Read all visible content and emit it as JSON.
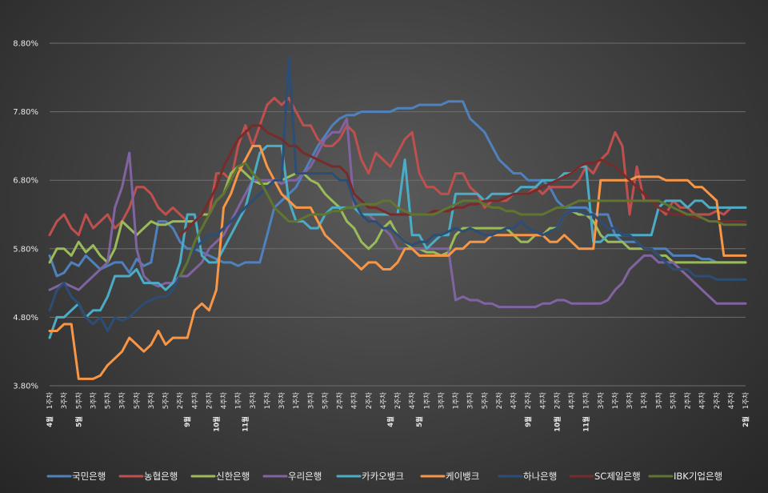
{
  "chart_data": {
    "type": "line",
    "ylim": [
      3.8,
      8.8
    ],
    "y_ticks": [
      "3.80%",
      "4.80%",
      "5.80%",
      "6.80%",
      "7.80%",
      "8.80%"
    ],
    "y_tick_values": [
      3.8,
      4.8,
      5.8,
      6.8,
      7.8,
      8.8
    ],
    "grid": true,
    "legend_position": "bottom",
    "x_week_labels": [
      "1주차",
      "3주차",
      "5주차",
      "3주차",
      "5주차",
      "3주차",
      "5주차",
      "3주차",
      "5주차",
      "2주차",
      "4주차",
      "2주차",
      "4주차",
      "1주차",
      "3주차",
      "1주차",
      "3주차",
      "1주차",
      "3주차",
      "5주차",
      "2주차",
      "4주차",
      "2주차",
      "4주차",
      "2주차",
      "4주차",
      "1주차",
      "3주차",
      "1주차",
      "3주차",
      "5주차",
      "2주차",
      "4주차",
      "2주차",
      "4주차",
      "2주차",
      "4주차",
      "1주차",
      "3주차",
      "1주차",
      "3주차",
      "1주차",
      "3주차",
      "5주차",
      "2주차",
      "4주차",
      "2주차",
      "4주차",
      "1주차"
    ],
    "x_month_labels": [
      {
        "at": 0,
        "text": "4월"
      },
      {
        "at": 4,
        "text": "5월"
      },
      {
        "at": 19,
        "text": "9월"
      },
      {
        "at": 23,
        "text": "10월"
      },
      {
        "at": 27,
        "text": "11월"
      },
      {
        "at": 47,
        "text": "4월"
      },
      {
        "at": 51,
        "text": "5월"
      },
      {
        "at": 66,
        "text": "9월"
      },
      {
        "at": 70,
        "text": "10월"
      },
      {
        "at": 74,
        "text": "11월"
      },
      {
        "at": 96,
        "text": "2월"
      }
    ],
    "series": [
      {
        "name": "국민은행",
        "color": "#4f81bd",
        "values": [
          5.7,
          5.4,
          5.45,
          5.6,
          5.55,
          5.7,
          5.6,
          5.5,
          5.55,
          5.6,
          5.6,
          5.45,
          5.65,
          5.55,
          5.6,
          6.2,
          6.2,
          6.1,
          5.9,
          5.8,
          5.8,
          5.75,
          5.7,
          5.65,
          5.6,
          5.6,
          5.55,
          5.6,
          5.6,
          5.6,
          6.0,
          6.4,
          6.5,
          6.6,
          6.7,
          6.9,
          7.1,
          7.3,
          7.45,
          7.6,
          7.7,
          7.75,
          7.75,
          7.8,
          7.8,
          7.8,
          7.8,
          7.8,
          7.85,
          7.85,
          7.85,
          7.9,
          7.9,
          7.9,
          7.9,
          7.95,
          7.95,
          7.95,
          7.7,
          7.6,
          7.5,
          7.3,
          7.1,
          7.0,
          6.9,
          6.9,
          6.8,
          6.8,
          6.8,
          6.7,
          6.5,
          6.4,
          6.4,
          6.4,
          6.4,
          6.3,
          6.3,
          6.3,
          6.0,
          5.9,
          5.9,
          5.9,
          5.8,
          5.8,
          5.8,
          5.8,
          5.7,
          5.7,
          5.7,
          5.7,
          5.65,
          5.65,
          5.6,
          5.6,
          5.6,
          5.6,
          5.6
        ]
      },
      {
        "name": "농협은행",
        "color": "#c0504d",
        "values": [
          6.0,
          6.2,
          6.3,
          6.1,
          6.0,
          6.3,
          6.1,
          6.2,
          6.3,
          6.1,
          6.2,
          6.4,
          6.7,
          6.7,
          6.6,
          6.4,
          6.3,
          6.4,
          6.3,
          6.2,
          6.2,
          6.3,
          6.3,
          6.9,
          6.9,
          6.8,
          7.3,
          7.6,
          7.3,
          7.6,
          7.9,
          8.0,
          7.9,
          8.0,
          7.8,
          7.6,
          7.6,
          7.4,
          7.3,
          7.3,
          7.4,
          7.6,
          7.5,
          7.1,
          6.9,
          7.2,
          7.1,
          7.0,
          7.2,
          7.4,
          7.5,
          6.9,
          6.7,
          6.7,
          6.6,
          6.6,
          6.9,
          6.9,
          6.7,
          6.6,
          6.4,
          6.5,
          6.5,
          6.5,
          6.6,
          6.6,
          6.6,
          6.7,
          6.6,
          6.7,
          6.7,
          6.7,
          6.7,
          6.8,
          7.0,
          6.9,
          7.1,
          7.2,
          7.5,
          7.3,
          6.3,
          7.0,
          6.5,
          6.5,
          6.4,
          6.3,
          6.5,
          6.4,
          6.4,
          6.3,
          6.3,
          6.3,
          6.35,
          6.3,
          6.4,
          6.4,
          6.4
        ]
      },
      {
        "name": "신한은행",
        "color": "#9bbb59",
        "values": [
          5.6,
          5.8,
          5.8,
          5.7,
          5.9,
          5.75,
          5.85,
          5.7,
          5.6,
          5.8,
          6.2,
          6.1,
          6.0,
          6.1,
          6.2,
          6.15,
          6.15,
          6.2,
          6.2,
          6.2,
          6.2,
          6.3,
          6.3,
          6.5,
          6.6,
          6.9,
          7.0,
          6.9,
          6.8,
          6.75,
          6.75,
          6.8,
          6.8,
          6.85,
          6.9,
          6.9,
          6.8,
          6.75,
          6.6,
          6.5,
          6.4,
          6.2,
          6.1,
          5.9,
          5.8,
          5.9,
          6.1,
          6.2,
          6.0,
          5.9,
          5.8,
          5.8,
          5.75,
          5.75,
          5.7,
          5.75,
          6.0,
          6.1,
          6.1,
          6.1,
          6.1,
          6.1,
          6.1,
          6.1,
          6.0,
          5.9,
          5.9,
          6.0,
          6.0,
          6.1,
          6.1,
          6.3,
          6.35,
          6.3,
          6.3,
          6.2,
          6.0,
          5.9,
          5.9,
          5.9,
          5.8,
          5.8,
          5.8,
          5.8,
          5.7,
          5.7,
          5.6,
          5.6,
          5.6,
          5.6,
          5.6,
          5.6,
          5.6,
          5.6,
          5.6,
          5.6,
          5.6
        ]
      },
      {
        "name": "우리은행",
        "color": "#8064a2",
        "values": [
          5.2,
          5.25,
          5.3,
          5.25,
          5.2,
          5.3,
          5.4,
          5.5,
          5.6,
          6.4,
          6.7,
          7.2,
          5.8,
          5.4,
          5.3,
          5.25,
          5.3,
          5.3,
          5.4,
          5.4,
          5.5,
          5.6,
          5.8,
          5.9,
          6.0,
          6.2,
          6.4,
          6.6,
          6.8,
          6.8,
          6.8,
          6.8,
          6.75,
          6.8,
          6.8,
          6.9,
          7.0,
          7.2,
          7.4,
          7.5,
          7.5,
          7.7,
          6.4,
          6.3,
          6.3,
          6.2,
          6.1,
          6.0,
          5.8,
          5.8,
          5.8,
          5.8,
          5.8,
          5.8,
          5.8,
          5.8,
          5.05,
          5.1,
          5.05,
          5.05,
          5.0,
          5.0,
          4.95,
          4.95,
          4.95,
          4.95,
          4.95,
          4.95,
          5.0,
          5.0,
          5.05,
          5.05,
          5.0,
          5.0,
          5.0,
          5.0,
          5.0,
          5.05,
          5.2,
          5.3,
          5.5,
          5.6,
          5.7,
          5.7,
          5.6,
          5.6,
          5.6,
          5.5,
          5.4,
          5.3,
          5.2,
          5.1,
          5.0,
          5.0,
          5.0,
          5.0,
          5.0
        ]
      },
      {
        "name": "카카오뱅크",
        "color": "#4bacc6",
        "values": [
          4.5,
          4.8,
          4.8,
          4.9,
          5.0,
          4.8,
          4.9,
          4.9,
          5.1,
          5.4,
          5.4,
          5.4,
          5.5,
          5.3,
          5.3,
          5.3,
          5.2,
          5.3,
          5.6,
          6.3,
          6.3,
          5.7,
          5.6,
          5.6,
          5.8,
          6.0,
          6.2,
          6.4,
          6.8,
          7.2,
          7.3,
          7.3,
          7.3,
          6.5,
          6.2,
          6.2,
          6.1,
          6.1,
          6.3,
          6.4,
          6.4,
          6.4,
          6.4,
          6.3,
          6.3,
          6.3,
          6.3,
          6.3,
          6.3,
          7.1,
          6.0,
          6.0,
          5.8,
          5.9,
          6.0,
          6.0,
          6.6,
          6.6,
          6.6,
          6.6,
          6.5,
          6.6,
          6.6,
          6.6,
          6.6,
          6.7,
          6.7,
          6.7,
          6.8,
          6.8,
          6.8,
          6.9,
          6.9,
          7.0,
          7.0,
          5.9,
          5.9,
          6.0,
          6.0,
          6.0,
          6.0,
          6.0,
          6.0,
          6.0,
          6.4,
          6.5,
          6.5,
          6.5,
          6.4,
          6.5,
          6.5,
          6.4,
          6.4,
          6.4,
          6.4,
          6.4,
          6.4
        ]
      },
      {
        "name": "케이뱅크",
        "color": "#f79646",
        "values": [
          4.6,
          4.6,
          4.7,
          4.7,
          3.9,
          3.9,
          3.9,
          3.95,
          4.1,
          4.2,
          4.3,
          4.5,
          4.4,
          4.3,
          4.4,
          4.6,
          4.4,
          4.5,
          4.5,
          4.5,
          4.9,
          5.0,
          4.9,
          5.2,
          6.4,
          6.6,
          6.9,
          7.1,
          7.3,
          7.3,
          7.0,
          6.8,
          6.6,
          6.5,
          6.4,
          6.4,
          6.4,
          6.2,
          6.0,
          5.9,
          5.8,
          5.7,
          5.6,
          5.5,
          5.6,
          5.6,
          5.5,
          5.5,
          5.6,
          5.8,
          5.8,
          5.7,
          5.7,
          5.7,
          5.7,
          5.7,
          5.8,
          5.8,
          5.9,
          5.9,
          5.9,
          6.0,
          6.0,
          6.0,
          6.0,
          6.0,
          6.0,
          6.0,
          6.0,
          5.9,
          5.9,
          6.0,
          5.9,
          5.8,
          5.8,
          5.8,
          6.8,
          6.8,
          6.8,
          6.8,
          6.8,
          6.85,
          6.85,
          6.85,
          6.85,
          6.8,
          6.8,
          6.8,
          6.8,
          6.7,
          6.7,
          6.6,
          6.5,
          5.7,
          5.7,
          5.7,
          5.7
        ]
      },
      {
        "name": "하나은행",
        "color": "#2c4d75",
        "values": [
          4.9,
          5.2,
          5.3,
          5.1,
          5.0,
          4.8,
          4.7,
          4.8,
          4.6,
          4.8,
          4.75,
          4.8,
          4.9,
          5.0,
          5.05,
          5.1,
          5.1,
          5.2,
          5.4,
          5.6,
          5.8,
          5.9,
          6.0,
          6.0,
          6.1,
          6.2,
          6.3,
          6.4,
          6.5,
          6.6,
          6.7,
          6.8,
          6.8,
          8.6,
          6.9,
          6.9,
          6.9,
          6.9,
          6.9,
          6.9,
          6.8,
          6.8,
          6.5,
          6.3,
          6.2,
          6.2,
          6.1,
          6.1,
          6.0,
          5.9,
          5.85,
          5.9,
          5.9,
          6.0,
          6.0,
          6.05,
          6.1,
          6.05,
          6.1,
          6.05,
          6.0,
          6.0,
          6.05,
          6.1,
          6.1,
          6.2,
          6.1,
          6.05,
          6.0,
          6.05,
          6.1,
          6.3,
          6.35,
          6.35,
          6.3,
          6.3,
          6.2,
          6.1,
          6.1,
          6.0,
          6.0,
          5.9,
          5.8,
          5.8,
          5.7,
          5.6,
          5.5,
          5.5,
          5.5,
          5.4,
          5.4,
          5.4,
          5.35,
          5.35,
          5.35,
          5.35,
          5.35
        ]
      },
      {
        "name": "SC제일은행",
        "color": "#772c2a",
        "values": [
          null,
          null,
          null,
          null,
          null,
          null,
          null,
          null,
          null,
          null,
          null,
          null,
          null,
          null,
          null,
          null,
          null,
          null,
          6.0,
          6.1,
          6.2,
          6.3,
          6.5,
          6.7,
          7.0,
          7.2,
          7.4,
          7.5,
          7.6,
          7.6,
          7.5,
          7.45,
          7.4,
          7.3,
          7.3,
          7.2,
          7.15,
          7.1,
          7.05,
          7.0,
          7.0,
          6.9,
          6.6,
          6.5,
          6.4,
          6.4,
          6.35,
          6.3,
          6.3,
          6.3,
          6.3,
          6.3,
          6.3,
          6.35,
          6.35,
          6.35,
          6.4,
          6.4,
          6.45,
          6.45,
          6.5,
          6.5,
          6.5,
          6.55,
          6.6,
          6.6,
          6.6,
          6.65,
          6.7,
          6.75,
          6.8,
          6.85,
          6.9,
          7.0,
          7.05,
          7.05,
          7.1,
          7.05,
          7.0,
          6.9,
          6.8,
          6.7,
          6.6,
          6.5,
          6.4,
          6.35,
          6.3,
          6.3,
          6.3,
          6.25,
          6.25,
          6.2,
          6.2,
          6.2,
          6.2,
          6.2,
          6.2
        ]
      },
      {
        "name": "IBK기업은행",
        "color": "#5f7530",
        "values": [
          null,
          null,
          null,
          null,
          null,
          null,
          null,
          null,
          null,
          null,
          null,
          null,
          null,
          null,
          null,
          null,
          null,
          null,
          5.4,
          5.6,
          5.9,
          6.1,
          6.3,
          6.5,
          6.6,
          6.8,
          7.0,
          7.05,
          6.9,
          6.8,
          6.6,
          6.4,
          6.3,
          6.2,
          6.2,
          6.25,
          6.3,
          6.3,
          6.3,
          6.35,
          6.35,
          6.4,
          6.4,
          6.45,
          6.45,
          6.45,
          6.5,
          6.5,
          6.4,
          6.35,
          6.3,
          6.3,
          6.3,
          6.3,
          6.35,
          6.4,
          6.45,
          6.5,
          6.5,
          6.5,
          6.45,
          6.4,
          6.4,
          6.35,
          6.35,
          6.3,
          6.3,
          6.3,
          6.3,
          6.35,
          6.4,
          6.4,
          6.45,
          6.5,
          6.5,
          6.5,
          6.5,
          6.5,
          6.5,
          6.5,
          6.5,
          6.5,
          6.5,
          6.5,
          6.5,
          6.45,
          6.4,
          6.35,
          6.3,
          6.3,
          6.25,
          6.2,
          6.2,
          6.15,
          6.15,
          6.15,
          6.15
        ]
      }
    ]
  }
}
